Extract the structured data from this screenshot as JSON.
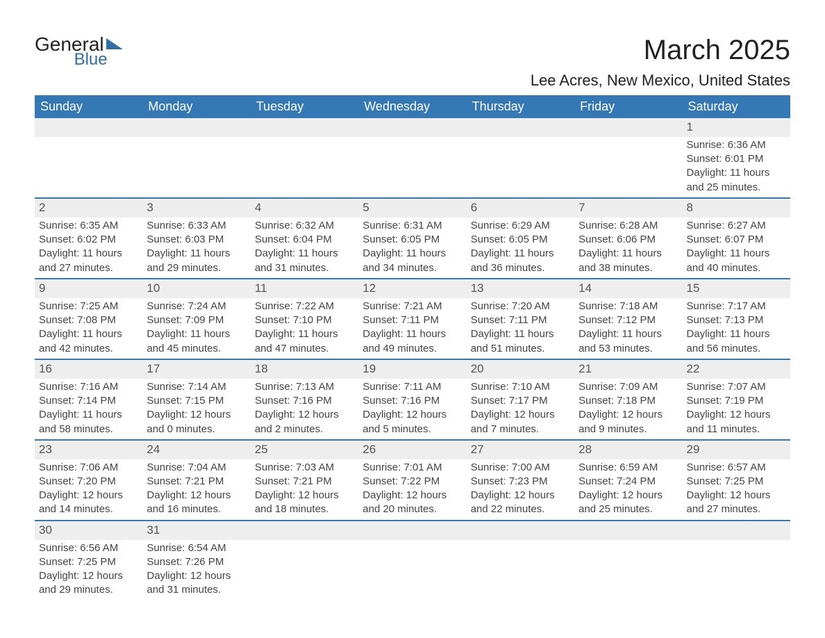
{
  "logo": {
    "line1": "General",
    "line2": "Blue"
  },
  "title": "March 2025",
  "location": "Lee Acres, New Mexico, United States",
  "colors": {
    "header_bg": "#3478b6",
    "header_text": "#ffffff",
    "daynum_bg": "#eeeeee",
    "border": "#3478b6",
    "logo_accent": "#2f6ea8"
  },
  "weekdays": [
    "Sunday",
    "Monday",
    "Tuesday",
    "Wednesday",
    "Thursday",
    "Friday",
    "Saturday"
  ],
  "weeks": [
    [
      null,
      null,
      null,
      null,
      null,
      null,
      {
        "n": "1",
        "sr": "Sunrise: 6:36 AM",
        "ss": "Sunset: 6:01 PM",
        "d1": "Daylight: 11 hours",
        "d2": "and 25 minutes."
      }
    ],
    [
      {
        "n": "2",
        "sr": "Sunrise: 6:35 AM",
        "ss": "Sunset: 6:02 PM",
        "d1": "Daylight: 11 hours",
        "d2": "and 27 minutes."
      },
      {
        "n": "3",
        "sr": "Sunrise: 6:33 AM",
        "ss": "Sunset: 6:03 PM",
        "d1": "Daylight: 11 hours",
        "d2": "and 29 minutes."
      },
      {
        "n": "4",
        "sr": "Sunrise: 6:32 AM",
        "ss": "Sunset: 6:04 PM",
        "d1": "Daylight: 11 hours",
        "d2": "and 31 minutes."
      },
      {
        "n": "5",
        "sr": "Sunrise: 6:31 AM",
        "ss": "Sunset: 6:05 PM",
        "d1": "Daylight: 11 hours",
        "d2": "and 34 minutes."
      },
      {
        "n": "6",
        "sr": "Sunrise: 6:29 AM",
        "ss": "Sunset: 6:05 PM",
        "d1": "Daylight: 11 hours",
        "d2": "and 36 minutes."
      },
      {
        "n": "7",
        "sr": "Sunrise: 6:28 AM",
        "ss": "Sunset: 6:06 PM",
        "d1": "Daylight: 11 hours",
        "d2": "and 38 minutes."
      },
      {
        "n": "8",
        "sr": "Sunrise: 6:27 AM",
        "ss": "Sunset: 6:07 PM",
        "d1": "Daylight: 11 hours",
        "d2": "and 40 minutes."
      }
    ],
    [
      {
        "n": "9",
        "sr": "Sunrise: 7:25 AM",
        "ss": "Sunset: 7:08 PM",
        "d1": "Daylight: 11 hours",
        "d2": "and 42 minutes."
      },
      {
        "n": "10",
        "sr": "Sunrise: 7:24 AM",
        "ss": "Sunset: 7:09 PM",
        "d1": "Daylight: 11 hours",
        "d2": "and 45 minutes."
      },
      {
        "n": "11",
        "sr": "Sunrise: 7:22 AM",
        "ss": "Sunset: 7:10 PM",
        "d1": "Daylight: 11 hours",
        "d2": "and 47 minutes."
      },
      {
        "n": "12",
        "sr": "Sunrise: 7:21 AM",
        "ss": "Sunset: 7:11 PM",
        "d1": "Daylight: 11 hours",
        "d2": "and 49 minutes."
      },
      {
        "n": "13",
        "sr": "Sunrise: 7:20 AM",
        "ss": "Sunset: 7:11 PM",
        "d1": "Daylight: 11 hours",
        "d2": "and 51 minutes."
      },
      {
        "n": "14",
        "sr": "Sunrise: 7:18 AM",
        "ss": "Sunset: 7:12 PM",
        "d1": "Daylight: 11 hours",
        "d2": "and 53 minutes."
      },
      {
        "n": "15",
        "sr": "Sunrise: 7:17 AM",
        "ss": "Sunset: 7:13 PM",
        "d1": "Daylight: 11 hours",
        "d2": "and 56 minutes."
      }
    ],
    [
      {
        "n": "16",
        "sr": "Sunrise: 7:16 AM",
        "ss": "Sunset: 7:14 PM",
        "d1": "Daylight: 11 hours",
        "d2": "and 58 minutes."
      },
      {
        "n": "17",
        "sr": "Sunrise: 7:14 AM",
        "ss": "Sunset: 7:15 PM",
        "d1": "Daylight: 12 hours",
        "d2": "and 0 minutes."
      },
      {
        "n": "18",
        "sr": "Sunrise: 7:13 AM",
        "ss": "Sunset: 7:16 PM",
        "d1": "Daylight: 12 hours",
        "d2": "and 2 minutes."
      },
      {
        "n": "19",
        "sr": "Sunrise: 7:11 AM",
        "ss": "Sunset: 7:16 PM",
        "d1": "Daylight: 12 hours",
        "d2": "and 5 minutes."
      },
      {
        "n": "20",
        "sr": "Sunrise: 7:10 AM",
        "ss": "Sunset: 7:17 PM",
        "d1": "Daylight: 12 hours",
        "d2": "and 7 minutes."
      },
      {
        "n": "21",
        "sr": "Sunrise: 7:09 AM",
        "ss": "Sunset: 7:18 PM",
        "d1": "Daylight: 12 hours",
        "d2": "and 9 minutes."
      },
      {
        "n": "22",
        "sr": "Sunrise: 7:07 AM",
        "ss": "Sunset: 7:19 PM",
        "d1": "Daylight: 12 hours",
        "d2": "and 11 minutes."
      }
    ],
    [
      {
        "n": "23",
        "sr": "Sunrise: 7:06 AM",
        "ss": "Sunset: 7:20 PM",
        "d1": "Daylight: 12 hours",
        "d2": "and 14 minutes."
      },
      {
        "n": "24",
        "sr": "Sunrise: 7:04 AM",
        "ss": "Sunset: 7:21 PM",
        "d1": "Daylight: 12 hours",
        "d2": "and 16 minutes."
      },
      {
        "n": "25",
        "sr": "Sunrise: 7:03 AM",
        "ss": "Sunset: 7:21 PM",
        "d1": "Daylight: 12 hours",
        "d2": "and 18 minutes."
      },
      {
        "n": "26",
        "sr": "Sunrise: 7:01 AM",
        "ss": "Sunset: 7:22 PM",
        "d1": "Daylight: 12 hours",
        "d2": "and 20 minutes."
      },
      {
        "n": "27",
        "sr": "Sunrise: 7:00 AM",
        "ss": "Sunset: 7:23 PM",
        "d1": "Daylight: 12 hours",
        "d2": "and 22 minutes."
      },
      {
        "n": "28",
        "sr": "Sunrise: 6:59 AM",
        "ss": "Sunset: 7:24 PM",
        "d1": "Daylight: 12 hours",
        "d2": "and 25 minutes."
      },
      {
        "n": "29",
        "sr": "Sunrise: 6:57 AM",
        "ss": "Sunset: 7:25 PM",
        "d1": "Daylight: 12 hours",
        "d2": "and 27 minutes."
      }
    ],
    [
      {
        "n": "30",
        "sr": "Sunrise: 6:56 AM",
        "ss": "Sunset: 7:25 PM",
        "d1": "Daylight: 12 hours",
        "d2": "and 29 minutes."
      },
      {
        "n": "31",
        "sr": "Sunrise: 6:54 AM",
        "ss": "Sunset: 7:26 PM",
        "d1": "Daylight: 12 hours",
        "d2": "and 31 minutes."
      },
      null,
      null,
      null,
      null,
      null
    ]
  ]
}
